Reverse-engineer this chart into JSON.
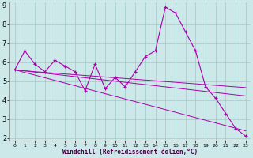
{
  "x": [
    0,
    1,
    2,
    3,
    4,
    5,
    6,
    7,
    8,
    9,
    10,
    11,
    12,
    13,
    14,
    15,
    16,
    17,
    18,
    19,
    20,
    21,
    22,
    23
  ],
  "y_main": [
    5.6,
    6.6,
    5.9,
    5.5,
    6.1,
    5.8,
    5.5,
    4.5,
    5.9,
    4.6,
    5.2,
    4.7,
    5.5,
    6.3,
    6.6,
    8.9,
    8.6,
    7.6,
    6.6,
    4.7,
    4.1,
    3.3,
    2.5,
    2.1
  ],
  "y_reg1": [
    5.6,
    5.55,
    5.5,
    5.46,
    5.42,
    5.38,
    5.34,
    5.3,
    5.26,
    5.22,
    5.18,
    5.14,
    5.1,
    5.06,
    5.02,
    4.98,
    4.94,
    4.9,
    4.86,
    4.82,
    4.78,
    4.74,
    4.7,
    4.66
  ],
  "y_reg2": [
    5.6,
    5.54,
    5.48,
    5.42,
    5.36,
    5.3,
    5.24,
    5.18,
    5.12,
    5.06,
    5.0,
    4.94,
    4.88,
    4.82,
    4.76,
    4.7,
    4.64,
    4.58,
    4.52,
    4.46,
    4.4,
    4.34,
    4.28,
    4.22
  ],
  "y_reg3": [
    5.6,
    5.46,
    5.32,
    5.18,
    5.04,
    4.9,
    4.76,
    4.62,
    4.48,
    4.34,
    4.2,
    4.06,
    3.92,
    3.78,
    3.64,
    3.5,
    3.36,
    3.22,
    3.08,
    2.94,
    2.8,
    2.66,
    2.52,
    2.38
  ],
  "color": "#aa00aa",
  "bg_color": "#cce8e8",
  "grid_color": "#99cccc",
  "xlabel": "Windchill (Refroidissement éolien,°C)",
  "ylim": [
    2,
    9
  ],
  "xlim": [
    0,
    23
  ],
  "yticks": [
    2,
    3,
    4,
    5,
    6,
    7,
    8,
    9
  ],
  "xticks": [
    0,
    1,
    2,
    3,
    4,
    5,
    6,
    7,
    8,
    9,
    10,
    11,
    12,
    13,
    14,
    15,
    16,
    17,
    18,
    19,
    20,
    21,
    22,
    23
  ]
}
